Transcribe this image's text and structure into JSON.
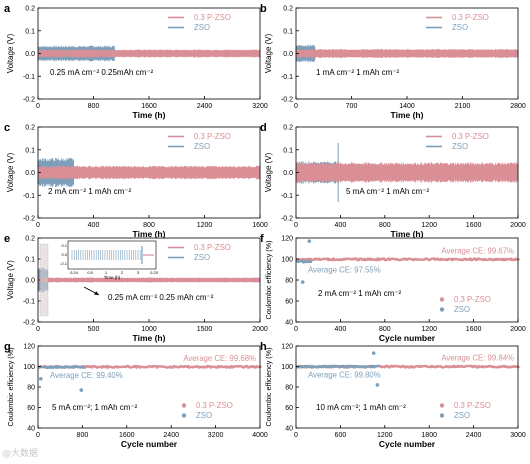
{
  "colors": {
    "red": "#d98f95",
    "blue": "#7d9fba",
    "axis": "#000000"
  },
  "watermark": "@大数据",
  "chart_data": [
    {
      "panel": "a",
      "type": "line",
      "xlabel": "Time (h)",
      "ylabel": "Voltage (V)",
      "xlim": [
        0,
        3200
      ],
      "ylim": [
        -0.2,
        0.2
      ],
      "xticks": [
        0,
        800,
        1600,
        2400,
        3200
      ],
      "yticks": [
        -0.2,
        -0.1,
        0.0,
        0.1,
        0.2
      ],
      "xticklabels": [
        "0",
        "800",
        "1600",
        "2400",
        "3200"
      ],
      "yticklabels": [
        "-0.2",
        "-0.1",
        "0.0",
        "0.1",
        "0.2"
      ],
      "legend": "top-right",
      "annotations": [
        "0.25 mA cm⁻²   0.25mAh cm⁻²"
      ],
      "series": [
        {
          "name": "0.3 P-ZSO",
          "color": "red",
          "x_range": [
            0,
            3200
          ],
          "amplitude": 0.018
        },
        {
          "name": "ZSO",
          "color": "blue",
          "x_range": [
            0,
            1100
          ],
          "amplitude": 0.035
        }
      ]
    },
    {
      "panel": "b",
      "type": "line",
      "xlabel": "Time (h)",
      "ylabel": "Voltage (V)",
      "xlim": [
        0,
        2800
      ],
      "ylim": [
        -0.2,
        0.2
      ],
      "xticks": [
        0,
        700,
        1400,
        2100,
        2800
      ],
      "yticks": [
        -0.2,
        -0.1,
        0.0,
        0.1,
        0.2
      ],
      "xticklabels": [
        "0",
        "700",
        "1400",
        "2100",
        "2800"
      ],
      "yticklabels": [
        "-0.2",
        "-0.1",
        "0.0",
        "0.1",
        "0.2"
      ],
      "legend": "top-right",
      "annotations": [
        "1 mA cm⁻²   1 mAh cm⁻²"
      ],
      "series": [
        {
          "name": "0.3 P-ZSO",
          "color": "red",
          "x_range": [
            0,
            2800
          ],
          "amplitude": 0.02
        },
        {
          "name": "ZSO",
          "color": "blue",
          "x_range": [
            0,
            240
          ],
          "amplitude": 0.04
        }
      ]
    },
    {
      "panel": "c",
      "type": "line",
      "xlabel": "Time (h)",
      "ylabel": "Voltage (V)",
      "xlim": [
        0,
        1600
      ],
      "ylim": [
        -0.2,
        0.2
      ],
      "xticks": [
        0,
        400,
        800,
        1200,
        1600
      ],
      "yticks": [
        -0.2,
        -0.1,
        0.0,
        0.1,
        0.2
      ],
      "xticklabels": [
        "0",
        "400",
        "800",
        "1200",
        "1600"
      ],
      "yticklabels": [
        "-0.2",
        "-0.1",
        "0.0",
        "0.1",
        "0.2"
      ],
      "legend": "top-right",
      "annotations": [
        "2 mA cm⁻²   1 mAh cm⁻²"
      ],
      "series": [
        {
          "name": "0.3 P-ZSO",
          "color": "red",
          "x_range": [
            0,
            1600
          ],
          "amplitude": 0.03
        },
        {
          "name": "ZSO",
          "color": "blue",
          "x_range": [
            0,
            260
          ],
          "amplitude": 0.065
        }
      ]
    },
    {
      "panel": "d",
      "type": "line",
      "xlabel": "Time (h)",
      "ylabel": "Voltage (V)",
      "xlim": [
        0,
        2000
      ],
      "ylim": [
        -0.2,
        0.2
      ],
      "xticks": [
        0,
        400,
        800,
        1200,
        1600,
        2000
      ],
      "yticks": [
        -0.2,
        -0.1,
        0.0,
        0.1,
        0.2
      ],
      "xticklabels": [
        "0",
        "400",
        "800",
        "1200",
        "1600",
        "2000"
      ],
      "yticklabels": [
        "-0.2",
        "-0.1",
        "0.0",
        "0.1",
        "0.2"
      ],
      "legend": "top-right",
      "annotations": [
        "5 mA cm⁻²   1 mAh cm⁻²"
      ],
      "series": [
        {
          "name": "0.3 P-ZSO",
          "color": "red",
          "x_range": [
            0,
            2000
          ],
          "amplitude": 0.045
        },
        {
          "name": "ZSO",
          "color": "blue",
          "x_range": [
            0,
            380
          ],
          "amplitude": 0.05,
          "spike": 0.13
        }
      ]
    },
    {
      "panel": "e",
      "type": "line",
      "xlabel": "Time (h)",
      "ylabel": "Voltage (V)",
      "xlim": [
        0,
        2000
      ],
      "ylim": [
        -0.2,
        0.2
      ],
      "xticks": [
        0,
        500,
        1000,
        1500,
        2000
      ],
      "yticks": [
        -0.2,
        -0.1,
        0.0,
        0.1,
        0.2
      ],
      "xticklabels": [
        "0",
        "500",
        "1000",
        "1500",
        "2000"
      ],
      "yticklabels": [
        "-0.2",
        "-0.1",
        "0.0",
        "0.1",
        "0.2"
      ],
      "legend": "top-right",
      "annotations": [
        "0.25 mA cm⁻²   0.25 mAh cm⁻²"
      ],
      "series": [
        {
          "name": "0.3 P-ZSO",
          "color": "red",
          "x_range": [
            0,
            2000
          ],
          "amplitude": 0.012
        },
        {
          "name": "ZSO",
          "color": "blue",
          "x_range": [
            0,
            90
          ],
          "amplitude": 0.06
        }
      ],
      "inset": {
        "xlabel": "Time (h)",
        "xticklabels": [
          "0.24",
          "0.5",
          "1",
          "2",
          "3",
          "0.25"
        ],
        "yticklabels": [
          "0.1",
          "0.0",
          "-0.1"
        ]
      }
    },
    {
      "panel": "f",
      "type": "scatter",
      "xlabel": "Cycle number",
      "ylabel": "Coulombic efficiency (%)",
      "xlim": [
        0,
        2000
      ],
      "ylim": [
        40,
        120
      ],
      "xticks": [
        0,
        400,
        800,
        1200,
        1600,
        2000
      ],
      "yticks": [
        40,
        60,
        80,
        100,
        120
      ],
      "xticklabels": [
        "0",
        "400",
        "800",
        "1200",
        "1600",
        "2000"
      ],
      "yticklabels": [
        "40",
        "60",
        "80",
        "100",
        "120"
      ],
      "legend": "bottom-right",
      "annotations": [
        "2 mA cm⁻² 1 mAh cm⁻²"
      ],
      "series": [
        {
          "name": "0.3 P-ZSO",
          "color": "red",
          "x_range": [
            0,
            2000
          ],
          "mean": 99.67,
          "label": "Average CE: 99.67%"
        },
        {
          "name": "ZSO",
          "color": "blue",
          "x_range": [
            0,
            130
          ],
          "mean": 97.55,
          "label": "Average CE: 97.55%",
          "outliers": [
            [
              60,
              78
            ],
            [
              120,
              117
            ]
          ]
        }
      ]
    },
    {
      "panel": "g",
      "type": "scatter",
      "xlabel": "Cycle number",
      "ylabel": "Coulombic efficiency (%)",
      "xlim": [
        0,
        4000
      ],
      "ylim": [
        40,
        120
      ],
      "xticks": [
        0,
        800,
        1600,
        2400,
        3200,
        4000
      ],
      "yticks": [
        40,
        60,
        80,
        100,
        120
      ],
      "xticklabels": [
        "0",
        "800",
        "1600",
        "2400",
        "3200",
        "4000"
      ],
      "yticklabels": [
        "40",
        "60",
        "80",
        "100",
        "120"
      ],
      "legend": "bottom-right",
      "annotations": [
        "5 mA cm⁻²; 1 mAh cm⁻²"
      ],
      "series": [
        {
          "name": "0.3 P-ZSO",
          "color": "red",
          "x_range": [
            0,
            4000
          ],
          "mean": 99.68,
          "label": "Average CE: 99.68%"
        },
        {
          "name": "ZSO",
          "color": "blue",
          "x_range": [
            0,
            820
          ],
          "mean": 99.4,
          "label": "Average CE: 99.40%",
          "outliers": [
            [
              50,
              88
            ],
            [
              780,
              77
            ]
          ]
        }
      ]
    },
    {
      "panel": "h",
      "type": "scatter",
      "xlabel": "Cycle number",
      "ylabel": "Coulombic efficiency (%)",
      "xlim": [
        0,
        3000
      ],
      "ylim": [
        40,
        120
      ],
      "xticks": [
        0,
        600,
        1200,
        1800,
        2400,
        3000
      ],
      "yticks": [
        40,
        60,
        80,
        100,
        120
      ],
      "xticklabels": [
        "0",
        "600",
        "1200",
        "1800",
        "2400",
        "3000"
      ],
      "yticklabels": [
        "40",
        "60",
        "80",
        "100",
        "120"
      ],
      "legend": "bottom-right",
      "annotations": [
        "10 mA cm⁻²; 1 mAh cm⁻²"
      ],
      "series": [
        {
          "name": "0.3 P-ZSO",
          "color": "red",
          "x_range": [
            0,
            3000
          ],
          "mean": 99.84,
          "label": "Average CE: 99.84%"
        },
        {
          "name": "ZSO",
          "color": "blue",
          "x_range": [
            0,
            1100
          ],
          "mean": 99.8,
          "label": "Average CE: 99.80%",
          "outliers": [
            [
              1050,
              113
            ],
            [
              1100,
              82
            ]
          ]
        }
      ]
    }
  ]
}
